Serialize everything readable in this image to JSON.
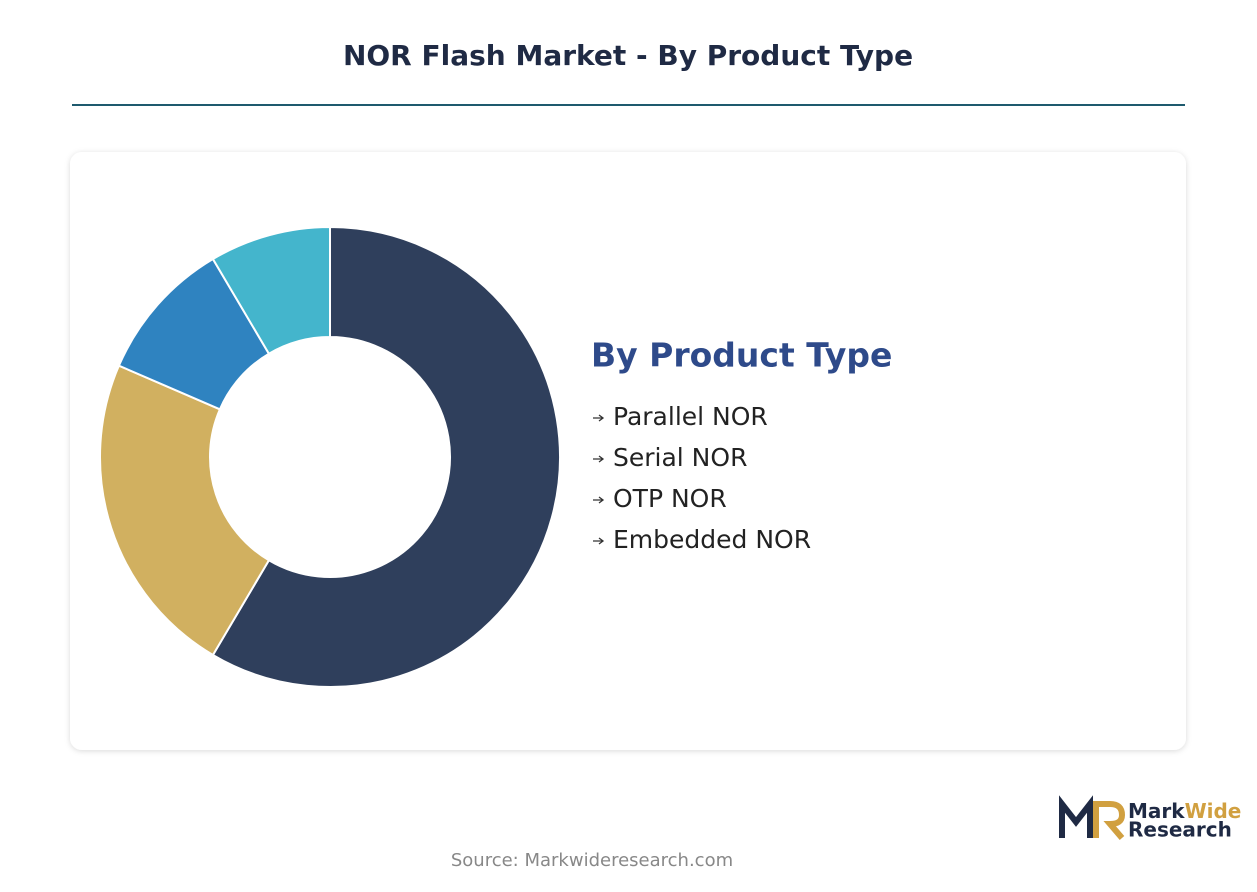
{
  "chart_data": {
    "type": "donut",
    "title": "NOR Flash Market - By Product Type",
    "legend_title": "By Product Type",
    "categories": [
      "Parallel NOR",
      "Serial NOR",
      "OTP NOR",
      "Embedded NOR"
    ],
    "values": [
      58.5,
      23,
      10,
      8.5
    ],
    "colors": [
      "#2f3f5c",
      "#d1b060",
      "#2f83c0",
      "#44b5cc"
    ]
  },
  "source": "Source: Markwideresearch.com",
  "logo": {
    "word1": "Mark",
    "word2": "Wide",
    "word3": "Research"
  }
}
